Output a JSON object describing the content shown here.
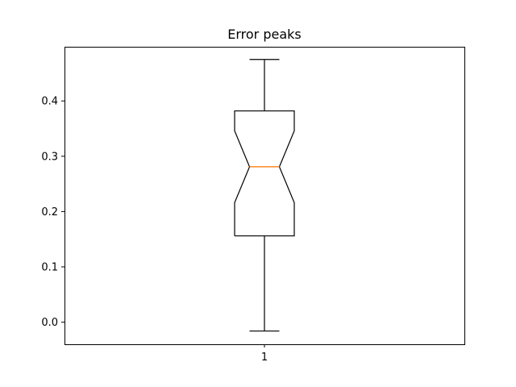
{
  "chart_data": {
    "type": "box",
    "title": "Error peaks",
    "xlabel": "",
    "ylabel": "",
    "notched": true,
    "categories": [
      "1"
    ],
    "boxes": [
      {
        "category": "1",
        "whisker_low": -0.016,
        "q1": 0.156,
        "notch_low": 0.216,
        "median": 0.281,
        "notch_high": 0.346,
        "q3": 0.382,
        "whisker_high": 0.475
      }
    ],
    "ylim": [
      -0.04,
      0.498
    ],
    "yticks": [
      0.0,
      0.1,
      0.2,
      0.3,
      0.4
    ],
    "ytick_labels": [
      "0.0",
      "0.1",
      "0.2",
      "0.3",
      "0.4"
    ],
    "grid": false,
    "colors": {
      "box": "#000000",
      "median": "#ff7f0e"
    }
  }
}
